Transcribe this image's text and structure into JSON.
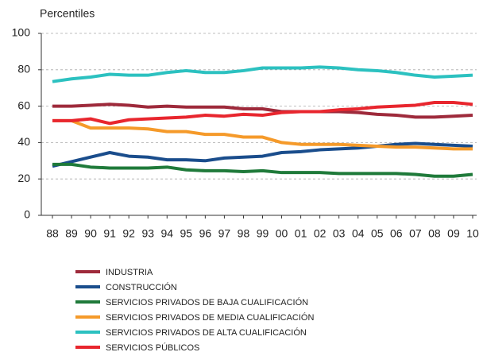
{
  "chart_data": {
    "type": "line",
    "y_label": "Percentiles",
    "categories": [
      "88",
      "89",
      "90",
      "91",
      "92",
      "93",
      "94",
      "95",
      "96",
      "97",
      "98",
      "99",
      "00",
      "01",
      "02",
      "03",
      "04",
      "05",
      "06",
      "07",
      "08",
      "09",
      "10"
    ],
    "ylim": [
      0,
      100
    ],
    "yticks": [
      0,
      20,
      40,
      60,
      80,
      100
    ],
    "grid": true,
    "series": [
      {
        "name": "INDUSTRIA",
        "color": "#9e2a3b",
        "values": [
          60,
          60,
          60.5,
          61,
          60.5,
          59.5,
          60,
          59.5,
          59.5,
          59.5,
          58.5,
          58.5,
          57,
          57,
          57,
          57,
          56.5,
          55.5,
          55,
          54,
          54,
          54.5,
          55
        ]
      },
      {
        "name": "CONSTRUCCIÓN",
        "color": "#1a4d8c",
        "values": [
          27,
          29.5,
          32,
          34.5,
          32.5,
          32,
          30.5,
          30.5,
          30,
          31.5,
          32,
          32.5,
          34.5,
          35,
          36,
          36.5,
          37,
          38,
          39,
          39.5,
          39,
          38.5,
          38
        ]
      },
      {
        "name": "SERVICIOS PRIVADOS DE BAJA CUALIFICACIÓN",
        "color": "#1f7a3a",
        "values": [
          28,
          28,
          26.5,
          26,
          26,
          26,
          26.5,
          25,
          24.5,
          24.5,
          24,
          24.5,
          23.5,
          23.5,
          23.5,
          23,
          23,
          23,
          23,
          22.5,
          21.5,
          21.5,
          22.5
        ]
      },
      {
        "name": "SERVICIOS PRIVADOS DE MEDIA CUALIFICACIÓN",
        "color": "#f59a2a",
        "values": [
          52,
          52,
          48,
          48,
          48,
          47.5,
          46,
          46,
          44.5,
          44.5,
          43,
          43,
          40,
          39,
          39,
          39,
          38.5,
          38,
          37.5,
          37.5,
          37,
          36.5,
          36.5
        ]
      },
      {
        "name": "SERVICIOS PRIVADOS DE ALTA CUALIFICACIÓN",
        "color": "#2cc1c0",
        "values": [
          73.5,
          75,
          76,
          77.5,
          77,
          77,
          78.5,
          79.5,
          78.5,
          78.5,
          79.5,
          81,
          81,
          81,
          81.5,
          81,
          80,
          79.5,
          78.5,
          77,
          76,
          76.5,
          77
        ]
      },
      {
        "name": "SERVICIOS PÚBLICOS",
        "color": "#e8262e",
        "values": [
          52,
          52,
          53,
          50.5,
          52.5,
          53,
          53.5,
          54,
          55,
          54.5,
          55.5,
          55,
          56.5,
          57,
          57,
          58,
          58.5,
          59.5,
          60,
          60.5,
          62,
          62,
          61
        ]
      }
    ]
  }
}
